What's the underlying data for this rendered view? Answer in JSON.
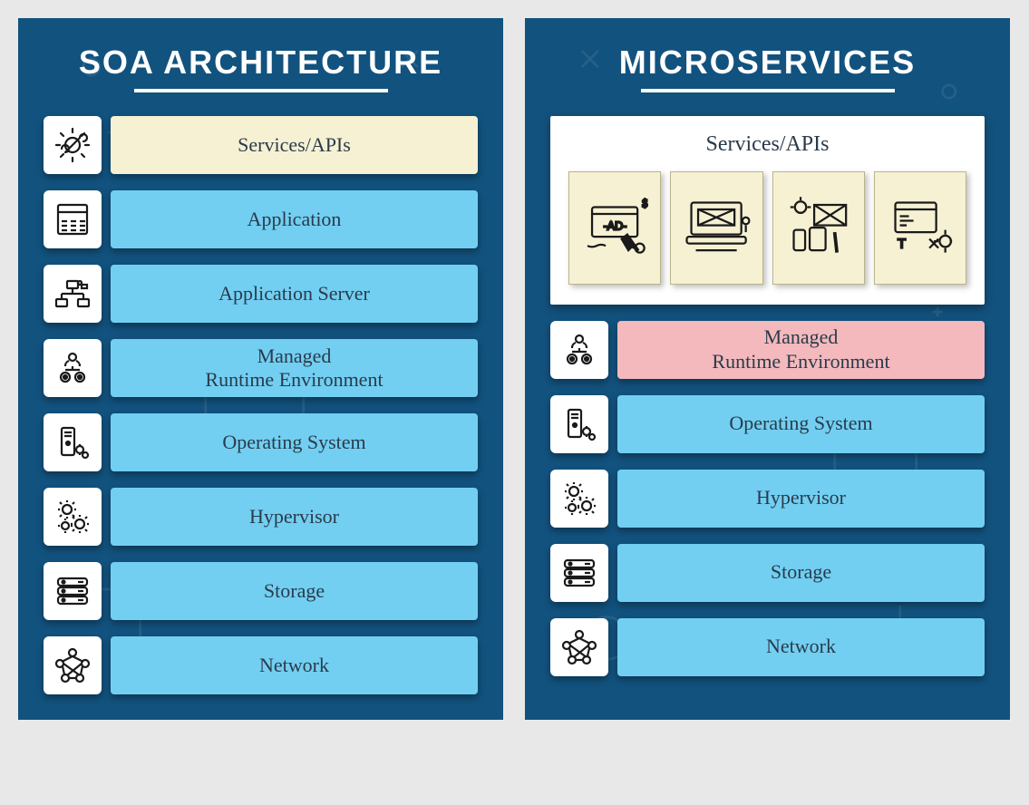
{
  "colors": {
    "panel_bg": "#12527e",
    "bar_blue": "#72cff2",
    "bar_cream": "#f6f1d3",
    "bar_pink": "#f3b9bd",
    "icon_stroke": "#1a1a1a",
    "title_text": "#ffffff",
    "bar_text": "#2a3b4a",
    "tile_bg": "#f6f1d3",
    "tile_border": "#b9b48d",
    "page_bg": "#e8e8e8"
  },
  "typography": {
    "title_fontsize": 36,
    "title_letter_spacing": 2,
    "bar_fontsize": 22,
    "services_title_fontsize": 24
  },
  "left": {
    "title": "SOA ARCHITECTURE",
    "layers": [
      {
        "label": "Services/APIs",
        "icon": "gear-wrench",
        "bg": "#f6f1d3"
      },
      {
        "label": "Application",
        "icon": "app-window",
        "bg": "#72cff2"
      },
      {
        "label": "Application Server",
        "icon": "server-nodes",
        "bg": "#72cff2"
      },
      {
        "label": "Managed\nRuntime Environment",
        "icon": "runtime-people",
        "bg": "#72cff2"
      },
      {
        "label": "Operating System",
        "icon": "pc-tower",
        "bg": "#72cff2"
      },
      {
        "label": "Hypervisor",
        "icon": "gears",
        "bg": "#72cff2"
      },
      {
        "label": "Storage",
        "icon": "drive-stack",
        "bg": "#72cff2"
      },
      {
        "label": "Network",
        "icon": "network-mesh",
        "bg": "#72cff2"
      }
    ]
  },
  "right": {
    "title": "MICROSERVICES",
    "services_card": {
      "title": "Services/APIs",
      "tiles": [
        "ad-click",
        "wireframe-desk",
        "idea-device",
        "tools-code"
      ]
    },
    "layers": [
      {
        "label": "Managed\nRuntime Environment",
        "icon": "runtime-people",
        "bg": "#f3b9bd"
      },
      {
        "label": "Operating System",
        "icon": "pc-tower",
        "bg": "#72cff2"
      },
      {
        "label": "Hypervisor",
        "icon": "gears",
        "bg": "#72cff2"
      },
      {
        "label": "Storage",
        "icon": "drive-stack",
        "bg": "#72cff2"
      },
      {
        "label": "Network",
        "icon": "network-mesh",
        "bg": "#72cff2"
      }
    ]
  }
}
